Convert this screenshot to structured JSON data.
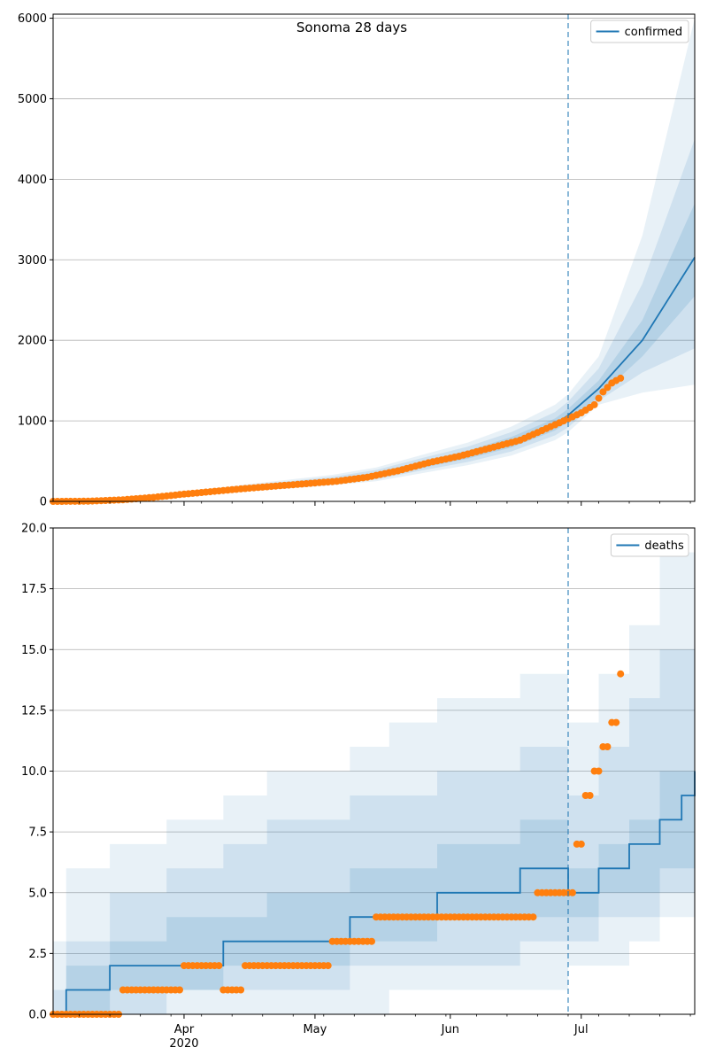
{
  "chart_data": [
    {
      "type": "line",
      "title": "Sonoma 28 days",
      "ylim": [
        0,
        6050
      ],
      "yticks": [
        0,
        1000,
        2000,
        3000,
        4000,
        5000,
        6000
      ],
      "x_range": [
        "2020-03-02",
        "2020-07-27"
      ],
      "x_ticks": [
        {
          "date": "2020-04-01",
          "label": "Apr",
          "sublabel": "2020"
        },
        {
          "date": "2020-05-01",
          "label": "May",
          "sublabel": ""
        },
        {
          "date": "2020-06-01",
          "label": "Jun",
          "sublabel": ""
        },
        {
          "date": "2020-07-01",
          "label": "Jul",
          "sublabel": ""
        }
      ],
      "forecast_start": "2020-06-28",
      "grid": "horizontal",
      "legend": {
        "position": "top-right",
        "entries": [
          "confirmed"
        ]
      },
      "colors": {
        "model": "#1f77b4",
        "observed": "#ff7f0e"
      },
      "series": [
        {
          "name": "confirmed",
          "kind": "median-with-bands",
          "x": [
            "2020-03-02",
            "2020-03-15",
            "2020-03-25",
            "2020-04-05",
            "2020-04-15",
            "2020-04-25",
            "2020-05-05",
            "2020-05-15",
            "2020-05-25",
            "2020-06-05",
            "2020-06-15",
            "2020-06-25",
            "2020-06-28",
            "2020-07-05",
            "2020-07-15",
            "2020-07-27"
          ],
          "median": [
            0,
            15,
            50,
            110,
            165,
            210,
            260,
            330,
            450,
            580,
            730,
            950,
            1070,
            1400,
            2000,
            3030
          ],
          "band_50": [
            [
              0,
              0
            ],
            [
              12,
              18
            ],
            [
              45,
              55
            ],
            [
              100,
              120
            ],
            [
              150,
              180
            ],
            [
              190,
              230
            ],
            [
              240,
              280
            ],
            [
              300,
              360
            ],
            [
              410,
              490
            ],
            [
              530,
              630
            ],
            [
              670,
              800
            ],
            [
              880,
              1030
            ],
            [
              990,
              1150
            ],
            [
              1300,
              1500
            ],
            [
              1800,
              2250
            ],
            [
              2550,
              3700
            ]
          ],
          "band_80": [
            [
              0,
              0
            ],
            [
              10,
              20
            ],
            [
              40,
              60
            ],
            [
              90,
              130
            ],
            [
              135,
              195
            ],
            [
              175,
              250
            ],
            [
              220,
              305
            ],
            [
              275,
              390
            ],
            [
              380,
              530
            ],
            [
              490,
              680
            ],
            [
              620,
              860
            ],
            [
              820,
              1110
            ],
            [
              920,
              1240
            ],
            [
              1250,
              1650
            ],
            [
              1600,
              2700
            ],
            [
              1900,
              4500
            ]
          ],
          "band_95": [
            [
              0,
              0
            ],
            [
              8,
              24
            ],
            [
              35,
              68
            ],
            [
              80,
              140
            ],
            [
              125,
              210
            ],
            [
              160,
              270
            ],
            [
              200,
              330
            ],
            [
              250,
              420
            ],
            [
              345,
              570
            ],
            [
              450,
              730
            ],
            [
              570,
              930
            ],
            [
              760,
              1200
            ],
            [
              860,
              1330
            ],
            [
              1200,
              1800
            ],
            [
              1350,
              3300
            ],
            [
              1450,
              6000
            ]
          ]
        },
        {
          "name": "observed confirmed",
          "kind": "points",
          "x": [
            "2020-03-02",
            "2020-03-10",
            "2020-03-18",
            "2020-03-25",
            "2020-04-01",
            "2020-04-08",
            "2020-04-15",
            "2020-04-22",
            "2020-04-29",
            "2020-05-06",
            "2020-05-13",
            "2020-05-20",
            "2020-05-27",
            "2020-06-03",
            "2020-06-10",
            "2020-06-17",
            "2020-06-22",
            "2020-06-27",
            "2020-07-01",
            "2020-07-04",
            "2020-07-06",
            "2020-07-08",
            "2020-07-10"
          ],
          "y": [
            0,
            2,
            20,
            50,
            90,
            125,
            160,
            190,
            220,
            250,
            300,
            380,
            480,
            560,
            660,
            760,
            880,
            1000,
            1100,
            1200,
            1360,
            1470,
            1530
          ]
        }
      ]
    },
    {
      "type": "line",
      "title": "",
      "ylim": [
        0,
        20
      ],
      "yticks": [
        0.0,
        2.5,
        5.0,
        7.5,
        10.0,
        12.5,
        15.0,
        17.5,
        20.0
      ],
      "ytick_labels": [
        "0.0",
        "2.5",
        "5.0",
        "7.5",
        "10.0",
        "12.5",
        "15.0",
        "17.5",
        "20.0"
      ],
      "x_range": [
        "2020-03-02",
        "2020-07-27"
      ],
      "x_ticks": [
        {
          "date": "2020-04-01",
          "label": "Apr",
          "sublabel": "2020"
        },
        {
          "date": "2020-05-01",
          "label": "May",
          "sublabel": ""
        },
        {
          "date": "2020-06-01",
          "label": "Jun",
          "sublabel": ""
        },
        {
          "date": "2020-07-01",
          "label": "Jul",
          "sublabel": ""
        }
      ],
      "forecast_start": "2020-06-28",
      "grid": "horizontal",
      "legend": {
        "position": "top-right",
        "entries": [
          "deaths"
        ]
      },
      "colors": {
        "model": "#1f77b4",
        "observed": "#ff7f0e"
      },
      "series": [
        {
          "name": "deaths",
          "kind": "step-median-with-bands",
          "steps": [
            [
              "2020-03-02",
              0
            ],
            [
              "2020-03-05",
              1
            ],
            [
              "2020-03-15",
              2
            ],
            [
              "2020-04-10",
              3
            ],
            [
              "2020-05-09",
              4
            ],
            [
              "2020-05-29",
              5
            ],
            [
              "2020-06-17",
              6
            ],
            [
              "2020-06-28",
              5
            ],
            [
              "2020-07-05",
              6
            ],
            [
              "2020-07-12",
              7
            ],
            [
              "2020-07-19",
              8
            ],
            [
              "2020-07-24",
              9
            ],
            [
              "2020-07-27",
              10
            ]
          ],
          "band_50_steps": [
            [
              "2020-03-02",
              0,
              0
            ],
            [
              "2020-03-05",
              0,
              2
            ],
            [
              "2020-03-15",
              1,
              3
            ],
            [
              "2020-03-28",
              1,
              4
            ],
            [
              "2020-04-10",
              2,
              4
            ],
            [
              "2020-04-20",
              2,
              5
            ],
            [
              "2020-05-09",
              3,
              6
            ],
            [
              "2020-05-29",
              4,
              7
            ],
            [
              "2020-06-17",
              4,
              8
            ],
            [
              "2020-06-28",
              4,
              6
            ],
            [
              "2020-07-05",
              5,
              7
            ],
            [
              "2020-07-12",
              5,
              8
            ],
            [
              "2020-07-19",
              6,
              10
            ],
            [
              "2020-07-27",
              7,
              12
            ]
          ],
          "band_80_steps": [
            [
              "2020-03-02",
              0,
              1
            ],
            [
              "2020-03-05",
              0,
              3
            ],
            [
              "2020-03-15",
              0,
              5
            ],
            [
              "2020-03-28",
              1,
              6
            ],
            [
              "2020-04-10",
              1,
              7
            ],
            [
              "2020-04-20",
              1,
              8
            ],
            [
              "2020-05-09",
              2,
              9
            ],
            [
              "2020-05-29",
              2,
              10
            ],
            [
              "2020-06-17",
              3,
              11
            ],
            [
              "2020-06-28",
              3,
              9
            ],
            [
              "2020-07-05",
              4,
              11
            ],
            [
              "2020-07-12",
              4,
              13
            ],
            [
              "2020-07-19",
              5,
              15
            ],
            [
              "2020-07-27",
              6,
              17
            ]
          ],
          "band_95_steps": [
            [
              "2020-03-02",
              0,
              3
            ],
            [
              "2020-03-05",
              0,
              6
            ],
            [
              "2020-03-15",
              0,
              7
            ],
            [
              "2020-03-28",
              0,
              8
            ],
            [
              "2020-04-10",
              0,
              9
            ],
            [
              "2020-04-20",
              0,
              10
            ],
            [
              "2020-05-09",
              0,
              11
            ],
            [
              "2020-05-18",
              1,
              12
            ],
            [
              "2020-05-29",
              1,
              13
            ],
            [
              "2020-06-17",
              1,
              14
            ],
            [
              "2020-06-28",
              2,
              12
            ],
            [
              "2020-07-05",
              2,
              14
            ],
            [
              "2020-07-12",
              3,
              16
            ],
            [
              "2020-07-19",
              4,
              19
            ],
            [
              "2020-07-27",
              6,
              21
            ]
          ]
        },
        {
          "name": "observed deaths",
          "kind": "points",
          "x": [
            "2020-03-02",
            "2020-03-06",
            "2020-03-10",
            "2020-03-14",
            "2020-03-18",
            "2020-03-22",
            "2020-03-26",
            "2020-04-01",
            "2020-04-05",
            "2020-04-10",
            "2020-04-15",
            "2020-04-20",
            "2020-04-25",
            "2020-05-01",
            "2020-05-05",
            "2020-05-09",
            "2020-05-15",
            "2020-05-20",
            "2020-05-25",
            "2020-06-01",
            "2020-06-08",
            "2020-06-15",
            "2020-06-21",
            "2020-06-25",
            "2020-06-28",
            "2020-06-30",
            "2020-07-02",
            "2020-07-04",
            "2020-07-06",
            "2020-07-08",
            "2020-07-10"
          ],
          "y": [
            0,
            0,
            0,
            0,
            1,
            1,
            1,
            2,
            2,
            1,
            2,
            2,
            2,
            2,
            3,
            3,
            4,
            4,
            4,
            4,
            4,
            4,
            5,
            5,
            5,
            7,
            9,
            10,
            11,
            12,
            14
          ]
        }
      ]
    }
  ]
}
